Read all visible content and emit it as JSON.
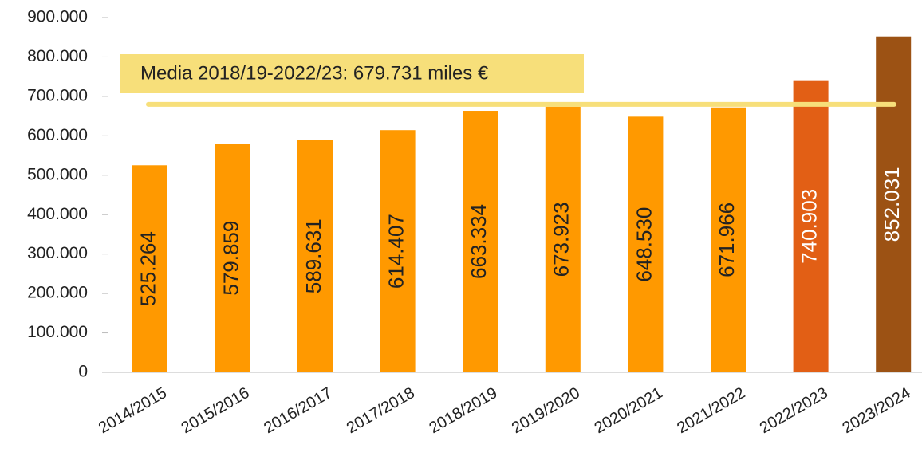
{
  "chart_data": {
    "type": "bar",
    "categories": [
      "2014/2015",
      "2015/2016",
      "2016/2017",
      "2017/2018",
      "2018/2019",
      "2019/2020",
      "2020/2021",
      "2021/2022",
      "2022/2023",
      "2023/2024"
    ],
    "values": [
      525264,
      579859,
      589631,
      614407,
      663334,
      673923,
      648530,
      671966,
      740903,
      852031
    ],
    "value_labels": [
      "525.264",
      "579.859",
      "589.631",
      "614.407",
      "663.334",
      "673.923",
      "648.530",
      "671.966",
      "740.903",
      "852.031"
    ],
    "colors": [
      "#ff9900",
      "#ff9900",
      "#ff9900",
      "#ff9900",
      "#ff9900",
      "#ff9900",
      "#ff9900",
      "#ff9900",
      "#e25f15",
      "#9c5214"
    ],
    "value_label_colors": [
      "#222222",
      "#222222",
      "#222222",
      "#222222",
      "#222222",
      "#222222",
      "#222222",
      "#222222",
      "#ffffff",
      "#ffffff"
    ],
    "ylim": [
      0,
      900000
    ],
    "yticks": [
      0,
      {
        "value": 100000,
        "label": "100.000"
      },
      {
        "value": 200000,
        "label": "200.000"
      },
      {
        "value": 300000,
        "label": "300.000"
      },
      {
        "value": 400000,
        "label": "400.000"
      },
      {
        "value": 500000,
        "label": "500.000"
      },
      {
        "value": 600000,
        "label": "600.000"
      },
      {
        "value": 700000,
        "label": "700.000"
      },
      {
        "value": 800000,
        "label": "800.000"
      },
      {
        "value": 900000,
        "label": "900.000"
      }
    ],
    "mean": {
      "value": 679731,
      "label": "Media 2018/19-2022/23: 679.731 miles €",
      "color": "#f7df7a"
    }
  }
}
